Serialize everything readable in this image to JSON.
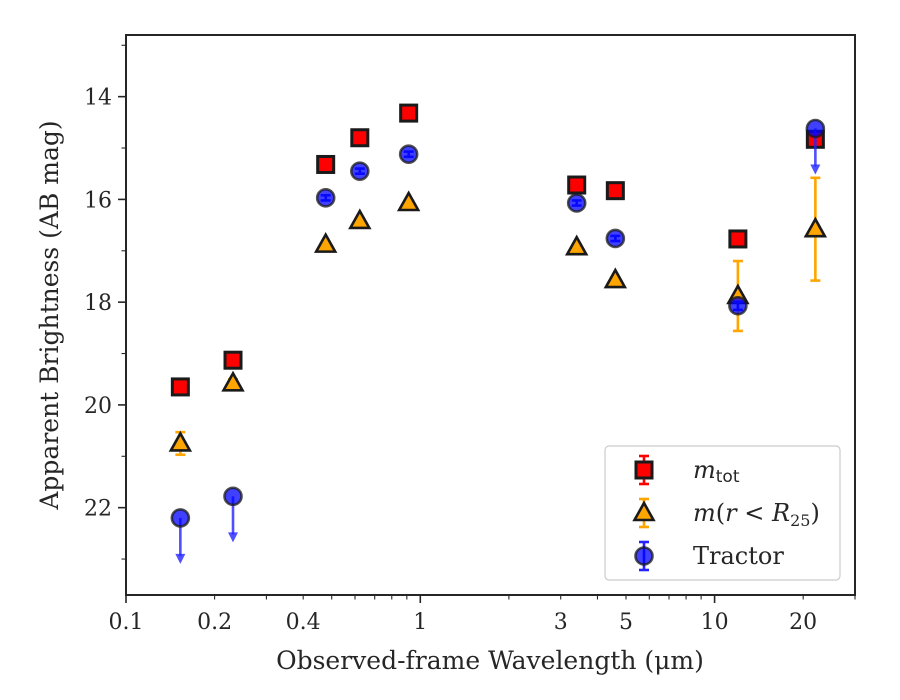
{
  "chart_data": {
    "type": "scatter",
    "title": "",
    "xlabel": "Observed-frame Wavelength (μm)",
    "ylabel": "Apparent Brightness (AB mag)",
    "xscale": "log",
    "xlim": [
      0.1,
      30
    ],
    "ylim": [
      23.7,
      12.8
    ],
    "y_inverted": true,
    "x_ticks": [
      {
        "value": 0.1,
        "label": "0.1"
      },
      {
        "value": 0.2,
        "label": "0.2"
      },
      {
        "value": 0.4,
        "label": "0.4"
      },
      {
        "value": 1,
        "label": "1"
      },
      {
        "value": 3,
        "label": "3"
      },
      {
        "value": 5,
        "label": "5"
      },
      {
        "value": 10,
        "label": "10"
      },
      {
        "value": 20,
        "label": "20"
      }
    ],
    "y_ticks": [
      {
        "value": 14,
        "label": "14"
      },
      {
        "value": 16,
        "label": "16"
      },
      {
        "value": 18,
        "label": "18"
      },
      {
        "value": 20,
        "label": "20"
      },
      {
        "value": 22,
        "label": "22"
      }
    ],
    "grid": false,
    "legend_position": "bottom-right",
    "series": [
      {
        "name": "m_tot",
        "name_main": "m",
        "name_sub": "tot",
        "marker": "square",
        "color": "#ff0000",
        "points": [
          {
            "x": 0.153,
            "y": 19.65,
            "err": 0.05
          },
          {
            "x": 0.231,
            "y": 19.13,
            "err": 0.05
          },
          {
            "x": 0.477,
            "y": 15.32,
            "err": 0.03
          },
          {
            "x": 0.623,
            "y": 14.8,
            "err": 0.03
          },
          {
            "x": 0.913,
            "y": 14.32,
            "err": 0.03
          },
          {
            "x": 3.4,
            "y": 15.72,
            "err": 0.03
          },
          {
            "x": 4.6,
            "y": 15.83,
            "err": 0.03
          },
          {
            "x": 12.0,
            "y": 16.77,
            "err": 0.05
          },
          {
            "x": 22.0,
            "y": 14.83,
            "err": 0.05
          }
        ]
      },
      {
        "name": "m(r<R_25)",
        "marker": "triangle",
        "color": "#ffa500",
        "points": [
          {
            "x": 0.153,
            "y": 20.75,
            "err": 0.22
          },
          {
            "x": 0.231,
            "y": 19.58,
            "err": 0.08
          },
          {
            "x": 0.477,
            "y": 16.88,
            "err": 0.05
          },
          {
            "x": 0.623,
            "y": 16.42,
            "err": 0.05
          },
          {
            "x": 0.913,
            "y": 16.07,
            "err": 0.05
          },
          {
            "x": 3.4,
            "y": 16.93,
            "err": 0.05
          },
          {
            "x": 4.6,
            "y": 17.57,
            "err": 0.05
          },
          {
            "x": 12.0,
            "y": 17.88,
            "err": 0.68
          },
          {
            "x": 22.0,
            "y": 16.58,
            "err": 1.0
          }
        ]
      },
      {
        "name": "Tractor",
        "marker": "circle",
        "color": "#0000ff",
        "points": [
          {
            "x": 0.153,
            "y": 22.2,
            "upper_limit": true
          },
          {
            "x": 0.231,
            "y": 21.78,
            "upper_limit": true
          },
          {
            "x": 0.477,
            "y": 15.97,
            "err": 0.05
          },
          {
            "x": 0.623,
            "y": 15.45,
            "err": 0.05
          },
          {
            "x": 0.913,
            "y": 15.12,
            "err": 0.05
          },
          {
            "x": 3.4,
            "y": 16.07,
            "err": 0.05
          },
          {
            "x": 4.6,
            "y": 16.76,
            "err": 0.05
          },
          {
            "x": 12.0,
            "y": 18.07,
            "err": 0.08
          },
          {
            "x": 22.0,
            "y": 14.62,
            "upper_limit": true
          }
        ]
      }
    ]
  }
}
